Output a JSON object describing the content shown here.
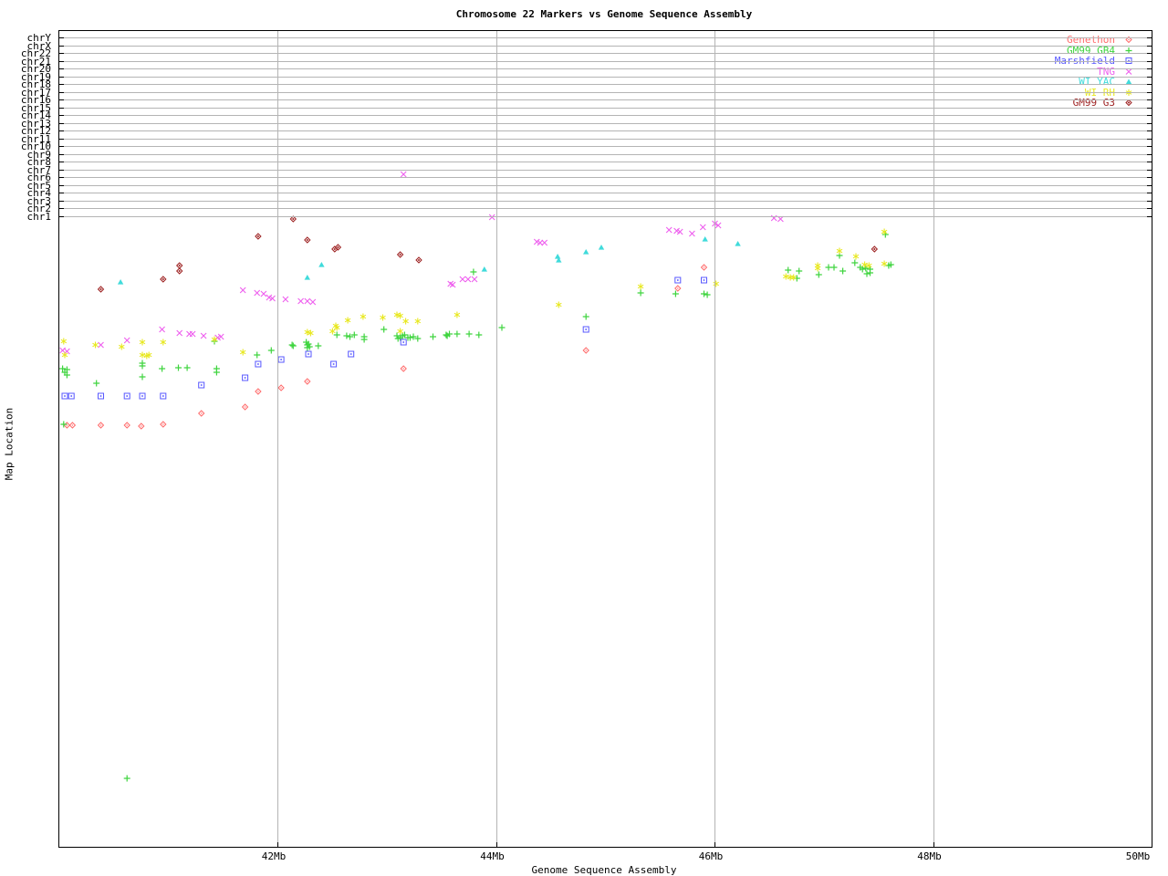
{
  "title": "Chromosome 22 Markers vs Genome Sequence Assembly",
  "axes": {
    "x_label": "Genome Sequence Assembly",
    "y_label": "Map Location",
    "x_ticks": [
      {
        "mb": 42,
        "label": "42Mb"
      },
      {
        "mb": 44,
        "label": "44Mb"
      },
      {
        "mb": 46,
        "label": "46Mb"
      },
      {
        "mb": 48,
        "label": "48Mb"
      },
      {
        "mb": 50,
        "label": "50Mb"
      }
    ],
    "y_band_labels": [
      "chrY",
      "chrX",
      "chr22",
      "chr21",
      "chr20",
      "chr19",
      "chr18",
      "chr17",
      "chr16",
      "chr15",
      "chr14",
      "chr13",
      "chr12",
      "chr11",
      "chr10",
      "chr9",
      "chr8",
      "chr7",
      "chr6",
      "chr5",
      "chr4",
      "chr3",
      "chr2",
      "chr1"
    ]
  },
  "chart_data": {
    "type": "scatter",
    "title": "Chromosome 22 Markers vs Genome Sequence Assembly",
    "xlabel": "Genome Sequence Assembly",
    "ylabel": "Map Location",
    "x_units": "Mb",
    "x_range": [
      40,
      50
    ],
    "y_axis_note": "Upper bands are per-chromosome rows (chrY..chr1); main area is unlabeled chr22 map location. Point y given in screen px from image top (plot spans 33-927).",
    "grid": true,
    "legend_position": "top-right",
    "gridline_color": "#b4b4b4",
    "series": [
      {
        "name": "Genethon",
        "marker": "diamond",
        "color": "#ff6a6a",
        "points": [
          [
            45.9,
            293
          ],
          [
            45.66,
            316
          ],
          [
            44.82,
            384
          ],
          [
            43.15,
            404
          ],
          [
            42.27,
            418
          ],
          [
            42.03,
            425
          ],
          [
            41.82,
            429
          ],
          [
            41.7,
            446
          ],
          [
            41.3,
            453
          ],
          [
            40.07,
            466
          ],
          [
            40.12,
            466
          ],
          [
            40.38,
            466
          ],
          [
            40.62,
            466
          ],
          [
            40.75,
            467
          ],
          [
            40.95,
            465
          ]
        ]
      },
      {
        "name": "GM99 GB4",
        "marker": "plus",
        "color": "#3fd43f",
        "points": [
          [
            40.62,
            853
          ],
          [
            40.04,
            465
          ],
          [
            40.03,
            404
          ],
          [
            40.07,
            405
          ],
          [
            40.05,
            408
          ],
          [
            40.07,
            411
          ],
          [
            40.34,
            420
          ],
          [
            40.76,
            398
          ],
          [
            40.76,
            401
          ],
          [
            40.76,
            413
          ],
          [
            40.94,
            404
          ],
          [
            41.09,
            403
          ],
          [
            41.17,
            403
          ],
          [
            41.44,
            404
          ],
          [
            41.44,
            408
          ],
          [
            41.42,
            374
          ],
          [
            41.81,
            389
          ],
          [
            41.94,
            384
          ],
          [
            42.13,
            378
          ],
          [
            42.14,
            379
          ],
          [
            42.26,
            375
          ],
          [
            42.27,
            378
          ],
          [
            42.28,
            377
          ],
          [
            42.27,
            381
          ],
          [
            42.29,
            380
          ],
          [
            42.37,
            379
          ],
          [
            42.54,
            367
          ],
          [
            42.63,
            368
          ],
          [
            42.66,
            369
          ],
          [
            42.7,
            367
          ],
          [
            42.79,
            369
          ],
          [
            42.79,
            372
          ],
          [
            42.97,
            361
          ],
          [
            43.09,
            368
          ],
          [
            43.1,
            371
          ],
          [
            43.12,
            370
          ],
          [
            43.14,
            368
          ],
          [
            43.16,
            367
          ],
          [
            43.19,
            370
          ],
          [
            43.21,
            370
          ],
          [
            43.24,
            369
          ],
          [
            43.28,
            371
          ],
          [
            43.42,
            369
          ],
          [
            43.54,
            367
          ],
          [
            43.55,
            368
          ],
          [
            43.57,
            366
          ],
          [
            43.64,
            366
          ],
          [
            43.75,
            366
          ],
          [
            43.84,
            367
          ],
          [
            43.79,
            298
          ],
          [
            44.05,
            359
          ],
          [
            44.82,
            347
          ],
          [
            45.32,
            321
          ],
          [
            45.64,
            322
          ],
          [
            45.9,
            322
          ],
          [
            45.93,
            323
          ],
          [
            46.67,
            296
          ],
          [
            46.77,
            297
          ],
          [
            46.75,
            305
          ],
          [
            46.95,
            301
          ],
          [
            47.04,
            293
          ],
          [
            47.09,
            293
          ],
          [
            47.14,
            280
          ],
          [
            47.17,
            297
          ],
          [
            47.28,
            288
          ],
          [
            47.33,
            293
          ],
          [
            47.35,
            295
          ],
          [
            47.38,
            294
          ],
          [
            47.39,
            300
          ],
          [
            47.42,
            295
          ],
          [
            47.42,
            299
          ],
          [
            47.56,
            257
          ],
          [
            47.59,
            291
          ],
          [
            47.61,
            290
          ]
        ]
      },
      {
        "name": "Marshfield",
        "marker": "square",
        "color": "#5858ff",
        "points": [
          [
            45.66,
            307
          ],
          [
            45.9,
            307
          ],
          [
            44.82,
            361
          ],
          [
            43.15,
            375
          ],
          [
            42.67,
            388
          ],
          [
            42.51,
            399
          ],
          [
            42.28,
            388
          ],
          [
            42.03,
            394
          ],
          [
            41.82,
            399
          ],
          [
            41.7,
            414
          ],
          [
            41.3,
            422
          ],
          [
            40.05,
            434
          ],
          [
            40.11,
            434
          ],
          [
            40.38,
            434
          ],
          [
            40.62,
            434
          ],
          [
            40.76,
            434
          ],
          [
            40.95,
            434
          ]
        ]
      },
      {
        "name": "TNG",
        "marker": "cross",
        "color": "#ee5fee",
        "points": [
          [
            43.15,
            191
          ],
          [
            46.54,
            239
          ],
          [
            46.6,
            240
          ],
          [
            46.03,
            247
          ],
          [
            46.0,
            245
          ],
          [
            45.89,
            249
          ],
          [
            45.79,
            256
          ],
          [
            45.68,
            254
          ],
          [
            45.65,
            253
          ],
          [
            45.58,
            252
          ],
          [
            44.44,
            266
          ],
          [
            44.4,
            266
          ],
          [
            44.37,
            265
          ],
          [
            43.96,
            238
          ],
          [
            43.8,
            306
          ],
          [
            43.74,
            306
          ],
          [
            43.69,
            306
          ],
          [
            43.6,
            312
          ],
          [
            43.58,
            311
          ],
          [
            42.32,
            331
          ],
          [
            42.27,
            330
          ],
          [
            42.21,
            330
          ],
          [
            42.07,
            328
          ],
          [
            41.95,
            327
          ],
          [
            41.92,
            326
          ],
          [
            41.87,
            322
          ],
          [
            41.81,
            321
          ],
          [
            41.68,
            318
          ],
          [
            41.48,
            369
          ],
          [
            41.45,
            370
          ],
          [
            41.32,
            368
          ],
          [
            41.22,
            366
          ],
          [
            41.19,
            366
          ],
          [
            41.1,
            365
          ],
          [
            40.94,
            361
          ],
          [
            40.62,
            373
          ],
          [
            40.38,
            378
          ],
          [
            40.07,
            385
          ],
          [
            40.03,
            384
          ]
        ]
      },
      {
        "name": "WI YAC",
        "marker": "triangle",
        "color": "#40dbdb",
        "points": [
          [
            40.56,
            309
          ],
          [
            42.27,
            304
          ],
          [
            42.4,
            290
          ],
          [
            43.89,
            295
          ],
          [
            44.56,
            281
          ],
          [
            44.57,
            285
          ],
          [
            44.82,
            276
          ],
          [
            44.96,
            271
          ],
          [
            45.91,
            262
          ],
          [
            46.21,
            267
          ]
        ]
      },
      {
        "name": "WI RH",
        "marker": "asterisk",
        "color": "#e8e820",
        "points": [
          [
            40.04,
            374
          ],
          [
            40.05,
            389
          ],
          [
            40.33,
            378
          ],
          [
            40.57,
            380
          ],
          [
            40.76,
            389
          ],
          [
            40.8,
            390
          ],
          [
            40.82,
            389
          ],
          [
            40.76,
            375
          ],
          [
            40.95,
            375
          ],
          [
            41.42,
            372
          ],
          [
            41.68,
            386
          ],
          [
            42.27,
            364
          ],
          [
            42.3,
            365
          ],
          [
            42.5,
            363
          ],
          [
            42.53,
            357
          ],
          [
            42.54,
            359
          ],
          [
            43.12,
            363
          ],
          [
            42.64,
            351
          ],
          [
            42.78,
            347
          ],
          [
            42.96,
            348
          ],
          [
            43.09,
            345
          ],
          [
            43.12,
            346
          ],
          [
            43.17,
            352
          ],
          [
            43.28,
            352
          ],
          [
            43.64,
            345
          ],
          [
            44.57,
            334
          ],
          [
            45.32,
            314
          ],
          [
            46.01,
            311
          ],
          [
            46.65,
            303
          ],
          [
            46.69,
            304
          ],
          [
            46.72,
            304
          ],
          [
            46.94,
            291
          ],
          [
            46.94,
            294
          ],
          [
            47.14,
            275
          ],
          [
            47.29,
            281
          ],
          [
            47.37,
            290
          ],
          [
            47.41,
            291
          ],
          [
            47.55,
            289
          ],
          [
            47.55,
            254
          ]
        ]
      },
      {
        "name": "GM99 G3",
        "marker": "diamond2",
        "color": "#9c1f1f",
        "points": [
          [
            41.82,
            259
          ],
          [
            41.1,
            291
          ],
          [
            41.1,
            297
          ],
          [
            40.95,
            306
          ],
          [
            40.38,
            317
          ],
          [
            42.14,
            240
          ],
          [
            42.27,
            263
          ],
          [
            42.52,
            273
          ],
          [
            42.55,
            271
          ],
          [
            43.12,
            279
          ],
          [
            43.29,
            285
          ],
          [
            47.46,
            273
          ]
        ]
      }
    ]
  }
}
